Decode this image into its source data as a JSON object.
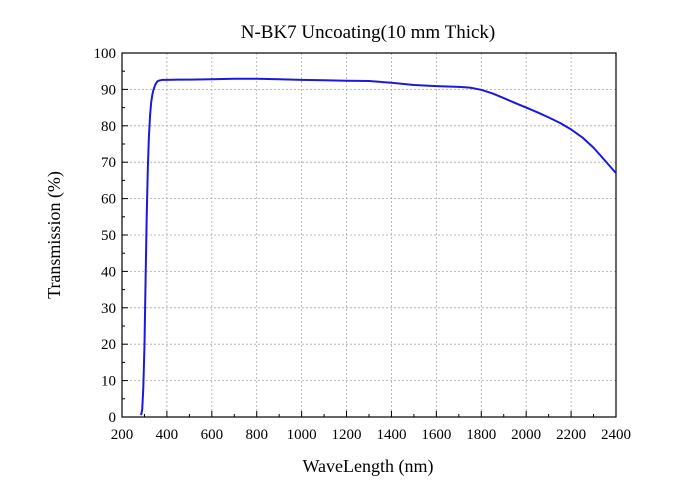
{
  "chart_data": {
    "type": "line",
    "title": "N-BK7 Uncoating(10 mm Thick)",
    "xlabel": "WaveLength (nm)",
    "ylabel": "Transmission (%)",
    "xlim": [
      200,
      2400
    ],
    "ylim": [
      0,
      100
    ],
    "xticks": [
      "200",
      "400",
      "600",
      "800",
      "1000",
      "1200",
      "1400",
      "1600",
      "1800",
      "2000",
      "2200",
      "2400"
    ],
    "yticks": [
      "0",
      "10",
      "20",
      "30",
      "40",
      "50",
      "60",
      "70",
      "80",
      "90",
      "100"
    ],
    "grid": true,
    "series_color": "#1a1adc",
    "series": [
      {
        "x": [
          285,
          290,
          295,
          300,
          305,
          310,
          315,
          320,
          325,
          330,
          335,
          340,
          345,
          350,
          355,
          360,
          370,
          380,
          400,
          450,
          500,
          600,
          700,
          800,
          900,
          1000,
          1100,
          1200,
          1300,
          1400,
          1500,
          1600,
          1700,
          1750,
          1800,
          1850,
          1900,
          1950,
          2000,
          2050,
          2100,
          2150,
          2200,
          2250,
          2300,
          2350,
          2400
        ],
        "y": [
          0.5,
          2,
          8,
          20,
          38,
          55,
          68,
          77,
          83,
          86.5,
          88.5,
          89.8,
          90.8,
          91.5,
          92.0,
          92.3,
          92.5,
          92.6,
          92.6,
          92.7,
          92.7,
          92.8,
          92.9,
          92.9,
          92.8,
          92.6,
          92.5,
          92.4,
          92.3,
          91.8,
          91.2,
          90.9,
          90.7,
          90.5,
          89.9,
          88.9,
          87.6,
          86.3,
          85.0,
          83.7,
          82.3,
          80.8,
          79.0,
          76.8,
          74.0,
          70.5,
          67.0
        ]
      }
    ]
  }
}
